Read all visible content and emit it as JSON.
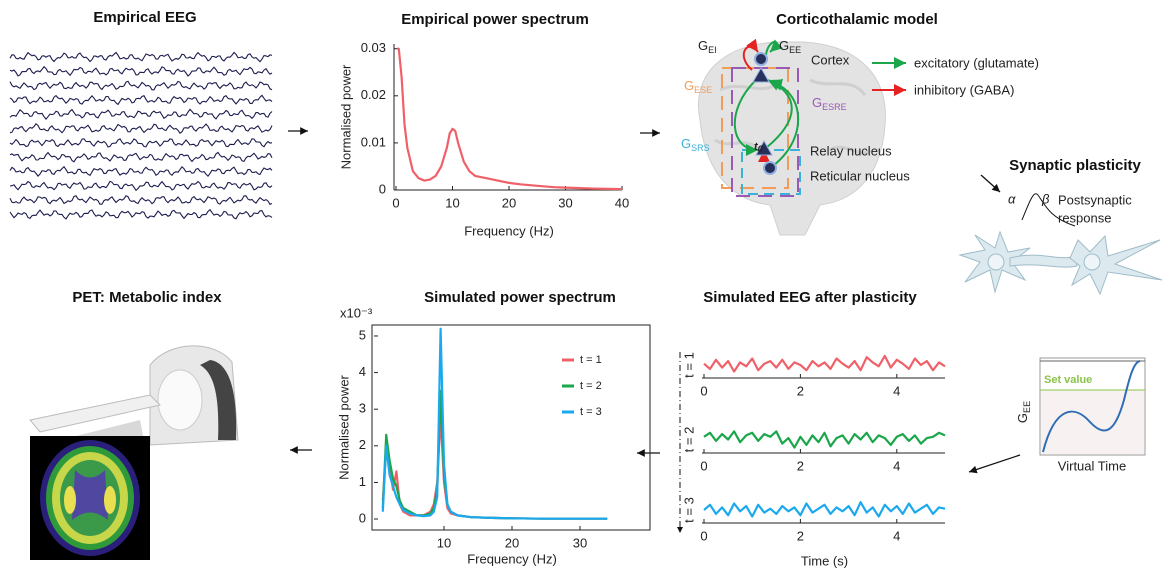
{
  "titles": {
    "empirical_eeg": "Empirical EEG",
    "pet": "PET: Metabolic index"
  },
  "model": {
    "title": "Corticothalamic model",
    "g_ei": {
      "main": "G",
      "sub": "EI"
    },
    "g_ee": {
      "main": "G",
      "sub": "EE"
    },
    "cortex": "Cortex",
    "excitatory": "excitatory (glutamate)",
    "inhibitory": "inhibitory (GABA)",
    "g_ese": {
      "main": "G",
      "sub": "ESE"
    },
    "g_esre": {
      "main": "G",
      "sub": "ESRE"
    },
    "g_srs": {
      "main": "G",
      "sub": "SRS"
    },
    "t0": {
      "main": "t",
      "sub": "0"
    },
    "relay": "Relay nucleus",
    "reticular": "Reticular nucleus"
  },
  "plasticity": {
    "title": "Synaptic plasticity",
    "alpha": "α",
    "beta": "β",
    "response_1": "Postsynaptic",
    "response_2": "response"
  },
  "gee_plot": {
    "y_label": {
      "main": "G",
      "sub": "EE"
    },
    "set_value": "Set value",
    "x_label": "Virtual Time"
  },
  "chart_data": [
    {
      "type": "line",
      "title": "Empirical power spectrum",
      "x_label": "Frequency (Hz)",
      "y_label": "Normalised power",
      "x": [
        0.2,
        0.5,
        1,
        1.5,
        2,
        3,
        4,
        5,
        6,
        7,
        8,
        9,
        9.5,
        10,
        10.5,
        11,
        12,
        13,
        14,
        16,
        18,
        20,
        22,
        25,
        28,
        30,
        35,
        40
      ],
      "series": [
        {
          "color": "#f06068",
          "values": [
            0.03,
            0.03,
            0.024,
            0.014,
            0.009,
            0.004,
            0.0025,
            0.002,
            0.0022,
            0.003,
            0.005,
            0.009,
            0.012,
            0.013,
            0.0125,
            0.01,
            0.006,
            0.004,
            0.003,
            0.0025,
            0.002,
            0.0015,
            0.0012,
            0.0009,
            0.0006,
            0.0005,
            0.0003,
            0.0002
          ]
        }
      ],
      "xlim": [
        0,
        40
      ],
      "xticks": [
        0,
        10,
        20,
        30,
        40
      ],
      "ylim": [
        0,
        0.031
      ],
      "yticks": [
        0,
        0.01,
        0.02,
        0.03
      ]
    },
    {
      "type": "line",
      "title": "Simulated power spectrum",
      "x_label": "Frequency (Hz)",
      "y_label": "Normalised power",
      "y_multiplier": "x10⁻³",
      "x": [
        1,
        1.5,
        2,
        2.5,
        3,
        3.5,
        4,
        5,
        6,
        7,
        8,
        8.5,
        9,
        9.5,
        10,
        10.5,
        11,
        12,
        14,
        17,
        20,
        25,
        30,
        34
      ],
      "series": [
        {
          "name": "t = 1",
          "color": "#f06068",
          "values": [
            0.5,
            1.9,
            1.5,
            0.8,
            1.3,
            0.4,
            0.2,
            0.1,
            0.1,
            0.1,
            0.2,
            0.4,
            1.0,
            2.8,
            1.0,
            0.3,
            0.15,
            0.1,
            0.05,
            0.03,
            0.02,
            0.01,
            0.01,
            0.01
          ]
        },
        {
          "name": "t = 2",
          "color": "#1aa64a",
          "values": [
            0.3,
            2.3,
            1.6,
            1.1,
            0.9,
            0.5,
            0.3,
            0.2,
            0.1,
            0.1,
            0.15,
            0.3,
            0.8,
            3.5,
            1.2,
            0.4,
            0.2,
            0.1,
            0.05,
            0.03,
            0.02,
            0.01,
            0.01,
            0.01
          ]
        },
        {
          "name": "t = 3",
          "color": "#1aa9ee",
          "values": [
            0.2,
            2.0,
            1.2,
            0.9,
            0.6,
            0.4,
            0.25,
            0.15,
            0.1,
            0.08,
            0.1,
            0.2,
            0.6,
            5.2,
            1.5,
            0.4,
            0.2,
            0.1,
            0.05,
            0.03,
            0.02,
            0.01,
            0.01,
            0.01
          ]
        }
      ],
      "xlim": [
        0,
        40
      ],
      "xticks": [
        10,
        20,
        30
      ],
      "ylim": [
        -0.3,
        5.3
      ],
      "yticks": [
        0,
        1,
        2,
        3,
        4,
        5
      ],
      "legend": "upper right"
    },
    {
      "type": "line",
      "title": "Simulated EEG after plasticity",
      "y_label": "t = 1",
      "x": [
        0,
        0.125,
        0.25,
        0.375,
        0.5,
        0.625,
        0.75,
        0.875,
        1,
        1.125,
        1.25,
        1.375,
        1.5,
        1.625,
        1.75,
        1.875,
        2,
        2.125,
        2.25,
        2.375,
        2.5,
        2.625,
        2.75,
        2.875,
        3,
        3.125,
        3.25,
        3.375,
        3.5,
        3.625,
        3.75,
        3.875,
        4,
        4.125,
        4.25,
        4.375,
        4.5,
        4.625,
        4.75,
        4.875,
        5
      ],
      "series": [
        {
          "color": "#f06068",
          "values": [
            0.1,
            -0.3,
            0.4,
            -0.2,
            0.3,
            -0.5,
            0.2,
            -0.1,
            0.5,
            -0.4,
            0.1,
            0.3,
            -0.2,
            0.4,
            -0.3,
            0.2,
            0.0,
            -0.4,
            0.3,
            -0.1,
            0.2,
            -0.3,
            0.5,
            0.1,
            -0.2,
            0.3,
            -0.4,
            0.6,
            0.2,
            -0.1,
            0.7,
            -0.2,
            0.4,
            0.1,
            -0.3,
            0.5,
            0.0,
            0.3,
            -0.4,
            0.2,
            -0.1
          ]
        }
      ],
      "xlim": [
        0,
        5
      ],
      "xticks": [
        0,
        2,
        4
      ],
      "ylim": [
        -1,
        1
      ]
    },
    {
      "type": "line",
      "y_label": "t = 2",
      "x": [
        0,
        0.125,
        0.25,
        0.375,
        0.5,
        0.625,
        0.75,
        0.875,
        1,
        1.125,
        1.25,
        1.375,
        1.5,
        1.625,
        1.75,
        1.875,
        2,
        2.125,
        2.25,
        2.375,
        2.5,
        2.625,
        2.75,
        2.875,
        3,
        3.125,
        3.25,
        3.375,
        3.5,
        3.625,
        3.75,
        3.875,
        4,
        4.125,
        4.25,
        4.375,
        4.5,
        4.625,
        4.75,
        4.875,
        5
      ],
      "series": [
        {
          "color": "#1aa64a",
          "values": [
            0.2,
            0.5,
            -0.1,
            0.4,
            0.0,
            0.6,
            -0.2,
            0.3,
            0.5,
            -0.1,
            0.4,
            0.2,
            0.6,
            -0.3,
            0.1,
            -0.6,
            0.2,
            -0.4,
            0.3,
            -0.2,
            0.5,
            -0.5,
            0.1,
            0.3,
            -0.3,
            0.4,
            0.0,
            0.5,
            -0.2,
            0.3,
            0.1,
            -0.4,
            0.2,
            0.4,
            -0.1,
            0.3,
            -0.3,
            0.1,
            0.2,
            0.5,
            0.3
          ]
        }
      ],
      "xlim": [
        0,
        5
      ],
      "xticks": [
        0,
        2,
        4
      ],
      "ylim": [
        -1,
        1
      ]
    },
    {
      "type": "line",
      "y_label": "t = 3",
      "x_label": "Time (s)",
      "x": [
        0,
        0.125,
        0.25,
        0.375,
        0.5,
        0.625,
        0.75,
        0.875,
        1,
        1.125,
        1.25,
        1.375,
        1.5,
        1.625,
        1.75,
        1.875,
        2,
        2.125,
        2.25,
        2.375,
        2.5,
        2.625,
        2.75,
        2.875,
        3,
        3.125,
        3.25,
        3.375,
        3.5,
        3.625,
        3.75,
        3.875,
        4,
        4.125,
        4.25,
        4.375,
        4.5,
        4.625,
        4.75,
        4.875,
        5
      ],
      "series": [
        {
          "color": "#1aa9ee",
          "values": [
            0.0,
            0.4,
            -0.3,
            0.2,
            -0.4,
            0.5,
            -0.1,
            0.3,
            -0.5,
            0.4,
            -0.2,
            0.1,
            -0.3,
            0.3,
            -0.1,
            0.2,
            -0.4,
            0.5,
            -0.2,
            0.1,
            0.4,
            -0.3,
            0.2,
            -0.1,
            0.3,
            -0.4,
            0.6,
            -0.2,
            0.2,
            -0.5,
            0.4,
            -0.1,
            0.3,
            -0.3,
            0.5,
            -0.2,
            0.1,
            0.4,
            -0.3,
            0.2,
            0.1
          ]
        }
      ],
      "xlim": [
        0,
        5
      ],
      "xticks": [
        0,
        2,
        4
      ],
      "ylim": [
        -1,
        1
      ]
    }
  ]
}
